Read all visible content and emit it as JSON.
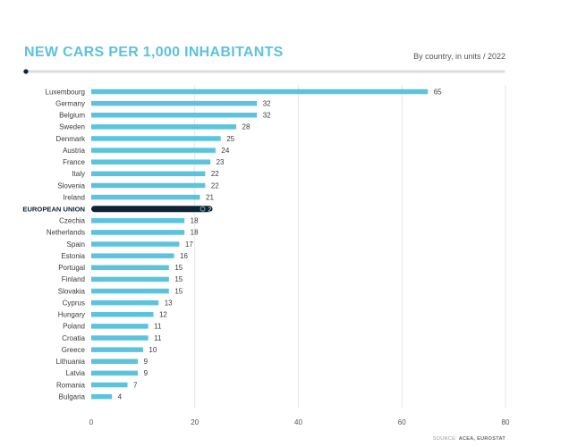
{
  "header": {
    "title": "NEW CARS PER 1,000 INHABITANTS",
    "subtitle": "By country, in units / 2022",
    "source_prefix": "SOURCE:",
    "source_names": "ACEA, EUROSTAT"
  },
  "colors": {
    "accent": "#5bc3de",
    "highlight": "#0d2436",
    "grid": "#e0e0e0",
    "rule": "#dcdcdc",
    "text": "#3a3a3a"
  },
  "chart_data": {
    "type": "bar",
    "orientation": "horizontal",
    "title": "NEW CARS PER 1,000 INHABITANTS",
    "subtitle": "By country, in units / 2022",
    "xlabel": "",
    "ylabel": "",
    "xlim": [
      0,
      80
    ],
    "xticks": [
      0,
      20,
      40,
      60,
      80
    ],
    "grid": true,
    "highlight_category": "EUROPEAN UNION",
    "categories": [
      "Luxembourg",
      "Germany",
      "Belgium",
      "Sweden",
      "Denmark",
      "Austria",
      "France",
      "Italy",
      "Slovenia",
      "Ireland",
      "EUROPEAN UNION",
      "Czechia",
      "Netherlands",
      "Spain",
      "Estonia",
      "Portugal",
      "Finland",
      "Slovakia",
      "Cyprus",
      "Hungary",
      "Poland",
      "Croatia",
      "Greece",
      "Lithuania",
      "Latvia",
      "Romania",
      "Bulgaria"
    ],
    "values": [
      65,
      32,
      32,
      28,
      25,
      24,
      23,
      22,
      22,
      21,
      21,
      18,
      18,
      17,
      16,
      15,
      15,
      15,
      13,
      12,
      11,
      11,
      10,
      9,
      9,
      7,
      4
    ]
  }
}
